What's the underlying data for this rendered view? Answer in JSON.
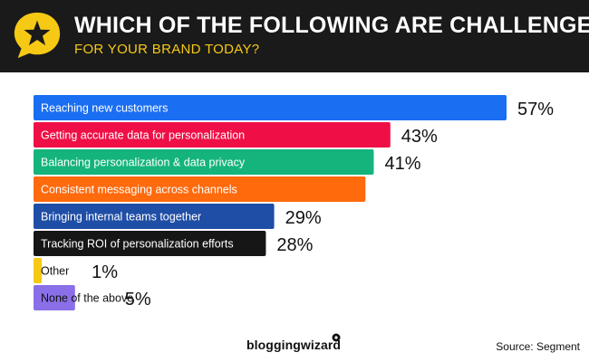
{
  "header": {
    "title": "WHICH OF THE FOLLOWING ARE CHALLENGES",
    "subtitle": "FOR YOUR BRAND TODAY?"
  },
  "chart_data": {
    "type": "bar",
    "orientation": "horizontal",
    "title": "Which of the following are challenges for your brand today?",
    "categories": [
      "Reaching new customers",
      "Getting accurate data for personalization",
      "Balancing personalization & data privacy",
      "Consistent messaging across channels",
      "Bringing internal teams together",
      "Tracking ROI of personalization efforts",
      "Other",
      "None of the above"
    ],
    "values": [
      57,
      43,
      41,
      40,
      29,
      28,
      1,
      5
    ],
    "value_labels": [
      "57%",
      "43%",
      "41%",
      "",
      "29%",
      "28%",
      "1%",
      "5%"
    ],
    "colors": [
      "#1a6ef2",
      "#ef0f46",
      "#14b47c",
      "#ff6a0d",
      "#1f4ea6",
      "#161616",
      "#f6c915",
      "#8a6fe8"
    ],
    "unit": "%",
    "xlim": [
      0,
      57
    ]
  },
  "footer": {
    "logo": "bloggingwizard",
    "source": "Source: Segment"
  }
}
